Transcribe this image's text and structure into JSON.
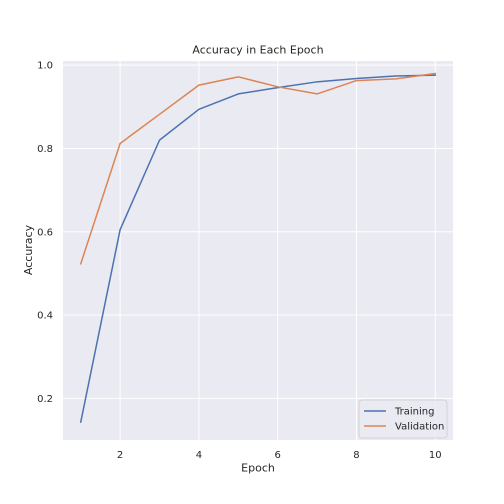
{
  "chart_data": {
    "type": "line",
    "title": "Accuracy in Each Epoch",
    "xlabel": "Epoch",
    "ylabel": "Accuracy",
    "x": [
      1,
      2,
      3,
      4,
      5,
      6,
      7,
      8,
      9,
      10
    ],
    "xlim": [
      0.55,
      10.45
    ],
    "ylim": [
      0.1,
      1.01
    ],
    "xticks": [
      2,
      4,
      6,
      8,
      10
    ],
    "yticks": [
      0.2,
      0.4,
      0.6,
      0.8,
      1.0
    ],
    "xtick_labels": [
      "2",
      "4",
      "6",
      "8",
      "10"
    ],
    "ytick_labels": [
      "0.2",
      "0.4",
      "0.6",
      "0.8",
      "1.0"
    ],
    "grid": true,
    "legend_position": "lower-right",
    "background_color": "#eaeaf2",
    "series": [
      {
        "name": "Training",
        "color": "#4c72b0",
        "values": [
          0.143,
          0.605,
          0.82,
          0.894,
          0.931,
          0.946,
          0.96,
          0.968,
          0.974,
          0.976
        ]
      },
      {
        "name": "Validation",
        "color": "#dd8452",
        "values": [
          0.523,
          0.812,
          0.882,
          0.952,
          0.972,
          0.948,
          0.931,
          0.963,
          0.967,
          0.98
        ]
      }
    ]
  }
}
